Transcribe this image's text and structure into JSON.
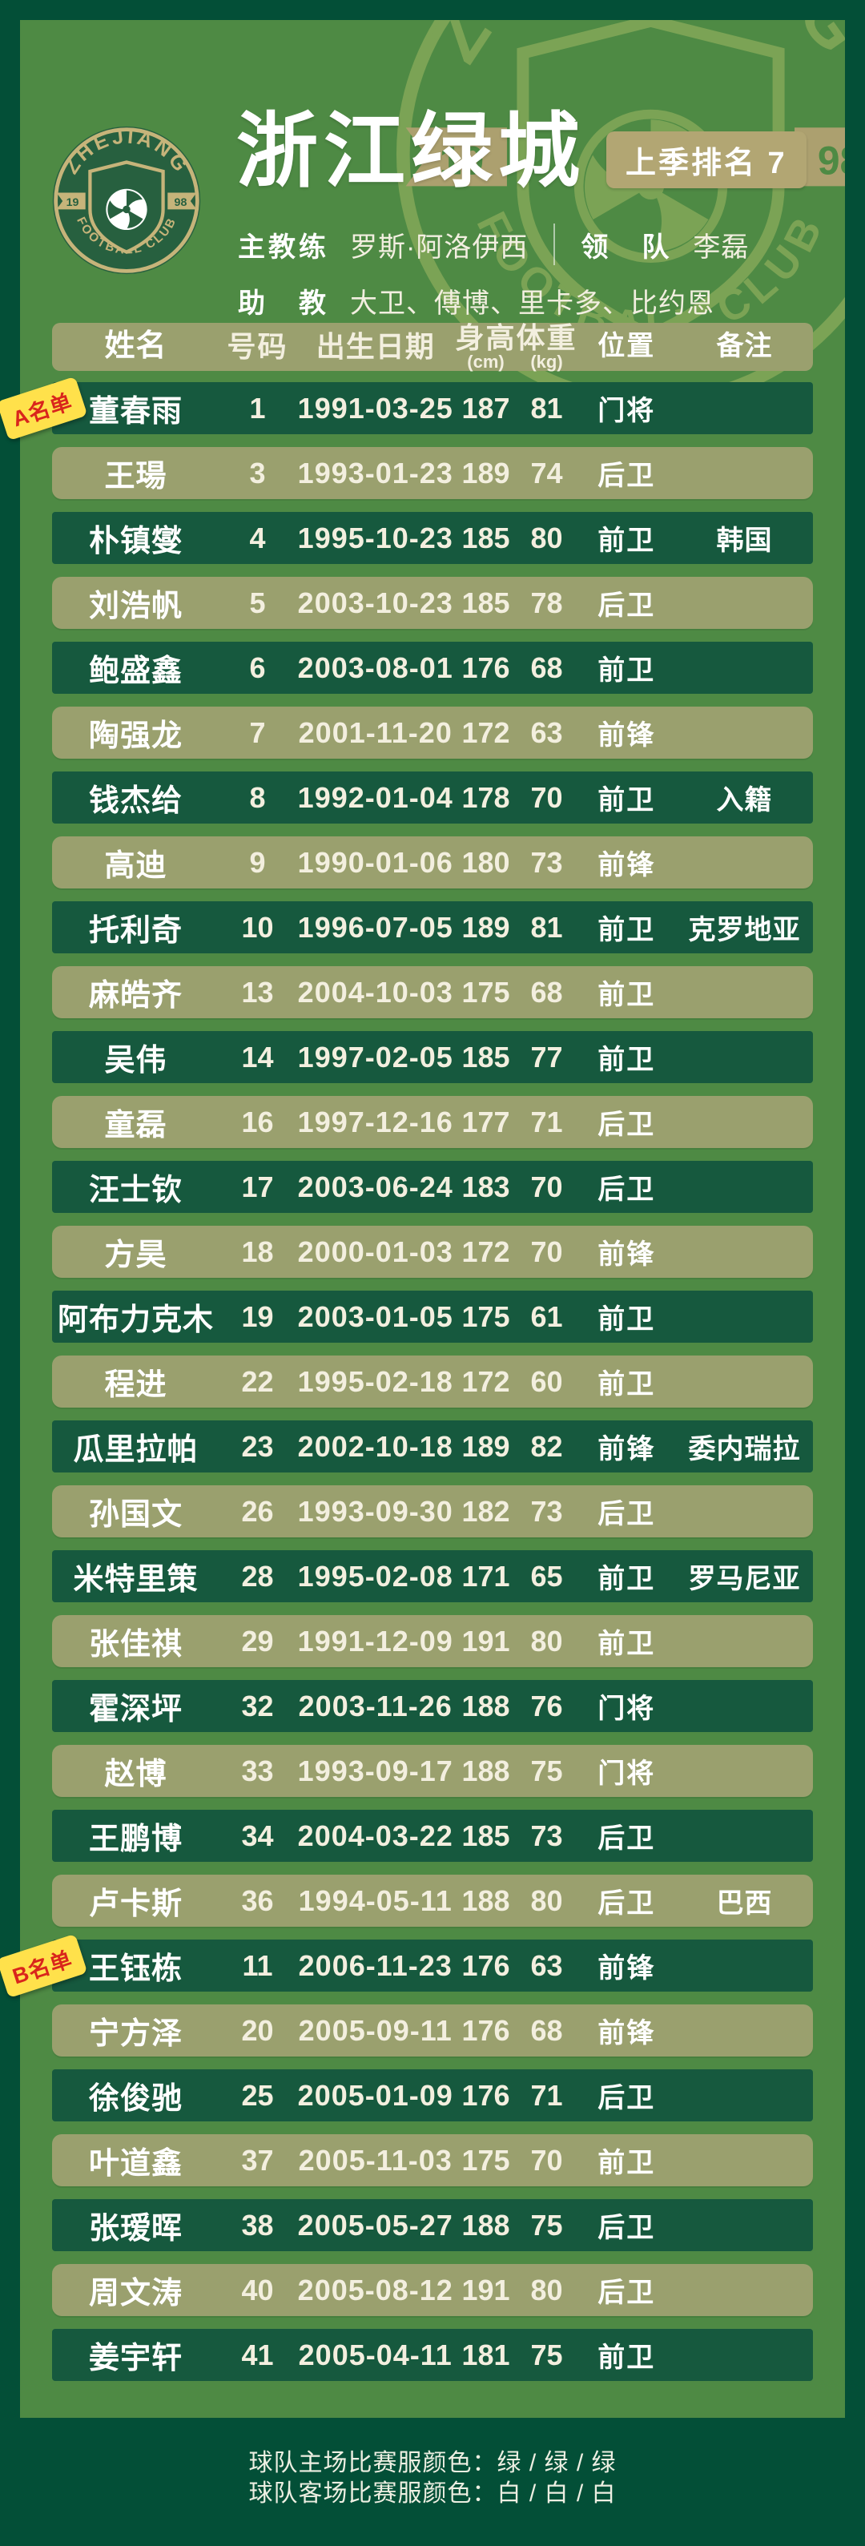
{
  "header": {
    "club_name": "浙江绿城",
    "ranking_badge": "上季排名 7",
    "head_coach_label": "主教练",
    "head_coach": "罗斯·阿洛伊西",
    "manager_label": "领　队",
    "manager": "李磊",
    "assistant_label": "助　教",
    "assistants": "大卫、傅博、里卡多、比约恩",
    "logo": {
      "arc_top": "ZHEJIANG",
      "arc_bottom": "FOOTBALL CLUB",
      "year_left": "19",
      "year_right": "98"
    }
  },
  "table": {
    "columns": [
      {
        "label": "姓名",
        "sub": ""
      },
      {
        "label": "号码",
        "sub": ""
      },
      {
        "label": "出生日期",
        "sub": ""
      },
      {
        "label": "身高",
        "sub": "(cm)"
      },
      {
        "label": "体重",
        "sub": "(kg)"
      },
      {
        "label": "位置",
        "sub": ""
      },
      {
        "label": "备注",
        "sub": ""
      }
    ],
    "group_badges": [
      {
        "label": "A名单",
        "row_index": 0
      },
      {
        "label": "B名单",
        "row_index": 24
      }
    ],
    "rows": [
      {
        "name": "董春雨",
        "number": "1",
        "birth": "1991-03-25",
        "height": "187",
        "weight": "81",
        "position": "门将",
        "note": ""
      },
      {
        "name": "王瑒",
        "number": "3",
        "birth": "1993-01-23",
        "height": "189",
        "weight": "74",
        "position": "后卫",
        "note": ""
      },
      {
        "name": "朴镇燮",
        "number": "4",
        "birth": "1995-10-23",
        "height": "185",
        "weight": "80",
        "position": "前卫",
        "note": "韩国"
      },
      {
        "name": "刘浩帆",
        "number": "5",
        "birth": "2003-10-23",
        "height": "185",
        "weight": "78",
        "position": "后卫",
        "note": ""
      },
      {
        "name": "鲍盛鑫",
        "number": "6",
        "birth": "2003-08-01",
        "height": "176",
        "weight": "68",
        "position": "前卫",
        "note": ""
      },
      {
        "name": "陶强龙",
        "number": "7",
        "birth": "2001-11-20",
        "height": "172",
        "weight": "63",
        "position": "前锋",
        "note": ""
      },
      {
        "name": "钱杰给",
        "number": "8",
        "birth": "1992-01-04",
        "height": "178",
        "weight": "70",
        "position": "前卫",
        "note": "入籍"
      },
      {
        "name": "高迪",
        "number": "9",
        "birth": "1990-01-06",
        "height": "180",
        "weight": "73",
        "position": "前锋",
        "note": ""
      },
      {
        "name": "托利奇",
        "number": "10",
        "birth": "1996-07-05",
        "height": "189",
        "weight": "81",
        "position": "前卫",
        "note": "克罗地亚"
      },
      {
        "name": "麻皓齐",
        "number": "13",
        "birth": "2004-10-03",
        "height": "175",
        "weight": "68",
        "position": "前卫",
        "note": ""
      },
      {
        "name": "吴伟",
        "number": "14",
        "birth": "1997-02-05",
        "height": "185",
        "weight": "77",
        "position": "前卫",
        "note": ""
      },
      {
        "name": "童磊",
        "number": "16",
        "birth": "1997-12-16",
        "height": "177",
        "weight": "71",
        "position": "后卫",
        "note": ""
      },
      {
        "name": "汪士钦",
        "number": "17",
        "birth": "2003-06-24",
        "height": "183",
        "weight": "70",
        "position": "后卫",
        "note": ""
      },
      {
        "name": "方昊",
        "number": "18",
        "birth": "2000-01-03",
        "height": "172",
        "weight": "70",
        "position": "前锋",
        "note": ""
      },
      {
        "name": "阿布力克木",
        "number": "19",
        "birth": "2003-01-05",
        "height": "175",
        "weight": "61",
        "position": "前卫",
        "note": ""
      },
      {
        "name": "程进",
        "number": "22",
        "birth": "1995-02-18",
        "height": "172",
        "weight": "60",
        "position": "前卫",
        "note": ""
      },
      {
        "name": "瓜里拉帕",
        "number": "23",
        "birth": "2002-10-18",
        "height": "189",
        "weight": "82",
        "position": "前锋",
        "note": "委内瑞拉"
      },
      {
        "name": "孙国文",
        "number": "26",
        "birth": "1993-09-30",
        "height": "182",
        "weight": "73",
        "position": "后卫",
        "note": ""
      },
      {
        "name": "米特里策",
        "number": "28",
        "birth": "1995-02-08",
        "height": "171",
        "weight": "65",
        "position": "前卫",
        "note": "罗马尼亚"
      },
      {
        "name": "张佳祺",
        "number": "29",
        "birth": "1991-12-09",
        "height": "191",
        "weight": "80",
        "position": "前卫",
        "note": ""
      },
      {
        "name": "霍深坪",
        "number": "32",
        "birth": "2003-11-26",
        "height": "188",
        "weight": "76",
        "position": "门将",
        "note": ""
      },
      {
        "name": "赵博",
        "number": "33",
        "birth": "1993-09-17",
        "height": "188",
        "weight": "75",
        "position": "门将",
        "note": ""
      },
      {
        "name": "王鹏博",
        "number": "34",
        "birth": "2004-03-22",
        "height": "185",
        "weight": "73",
        "position": "后卫",
        "note": ""
      },
      {
        "name": "卢卡斯",
        "number": "36",
        "birth": "1994-05-11",
        "height": "188",
        "weight": "80",
        "position": "后卫",
        "note": "巴西"
      },
      {
        "name": "王钰栋",
        "number": "11",
        "birth": "2006-11-23",
        "height": "176",
        "weight": "63",
        "position": "前锋",
        "note": ""
      },
      {
        "name": "宁方泽",
        "number": "20",
        "birth": "2005-09-11",
        "height": "176",
        "weight": "68",
        "position": "前锋",
        "note": ""
      },
      {
        "name": "徐俊驰",
        "number": "25",
        "birth": "2005-01-09",
        "height": "176",
        "weight": "71",
        "position": "后卫",
        "note": ""
      },
      {
        "name": "叶道鑫",
        "number": "37",
        "birth": "2005-11-03",
        "height": "175",
        "weight": "70",
        "position": "前卫",
        "note": ""
      },
      {
        "name": "张瑷晖",
        "number": "38",
        "birth": "2005-05-27",
        "height": "188",
        "weight": "75",
        "position": "后卫",
        "note": ""
      },
      {
        "name": "周文涛",
        "number": "40",
        "birth": "2005-08-12",
        "height": "191",
        "weight": "80",
        "position": "后卫",
        "note": ""
      },
      {
        "name": "姜宇轩",
        "number": "41",
        "birth": "2005-04-11",
        "height": "181",
        "weight": "75",
        "position": "前卫",
        "note": ""
      }
    ]
  },
  "footer": {
    "home_kit": "球队主场比赛服颜色：绿 / 绿 / 绿",
    "away_kit": "球队客场比赛服颜色：白 / 白 / 白"
  },
  "colors": {
    "frame_green": "#034f37",
    "panel_green": "#4e8a44",
    "dark_row_green": "#16593e",
    "khaki_row": "#9aa06e",
    "tan_badge": "#b2a673",
    "cream_text": "#f3efdf",
    "logo_gold": "#c6b47a",
    "logo_green": "#27603f",
    "watermark_green": "#7ba355",
    "badge_yellow": "#ffe14b",
    "badge_red": "#d9251c"
  }
}
